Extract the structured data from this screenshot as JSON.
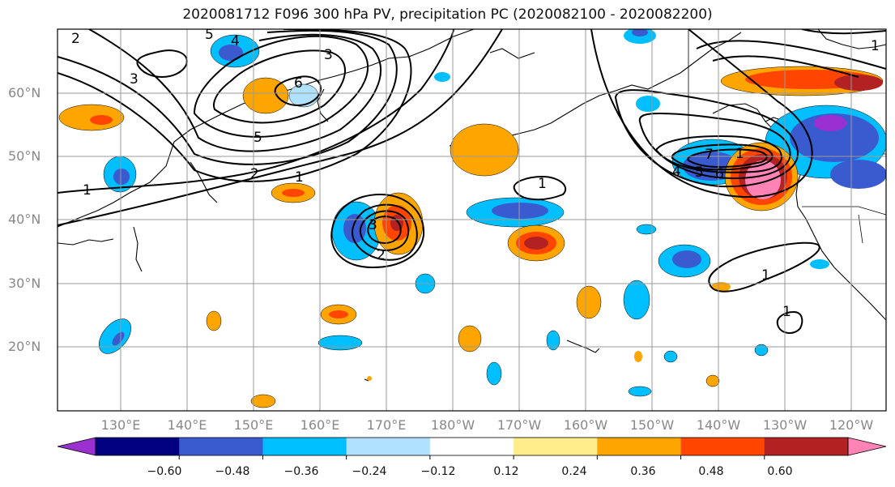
{
  "title": "2020081712 F096 300 hPa PV, precipitation PC (2020082100 - 2020082200)",
  "lat_labels": [
    "60°N",
    "50°N",
    "40°N",
    "30°N",
    "20°N"
  ],
  "lon_labels": [
    "130°E",
    "140°E",
    "150°E",
    "160°E",
    "170°E",
    "180°W",
    "170°W",
    "160°W",
    "150°W",
    "140°W",
    "130°W",
    "120°W"
  ],
  "colorbar": {
    "ticks": [
      "−0.60",
      "−0.48",
      "−0.36",
      "−0.24",
      "−0.12",
      "0.12",
      "0.24",
      "0.36",
      "0.48",
      "0.60"
    ],
    "colors": [
      "#9b30d0",
      "#000080",
      "#3a5bd0",
      "#00bfff",
      "#b0e2ff",
      "#ffffff",
      "#ffec8b",
      "#ffa500",
      "#ff4500",
      "#b22222",
      "#ff83b4"
    ]
  },
  "contour_labels": [
    "2",
    "5",
    "4",
    "3",
    "6",
    "3",
    "5",
    "2",
    "1",
    "1",
    "3",
    "2",
    "1",
    "7",
    "1",
    "4",
    "5",
    "6",
    "1",
    "1",
    "1"
  ]
}
